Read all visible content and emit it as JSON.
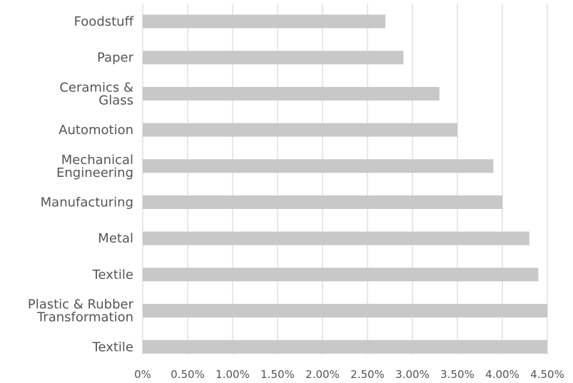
{
  "chart_data": {
    "type": "bar",
    "orientation": "horizontal",
    "title": "",
    "xlabel": "",
    "ylabel": "",
    "categories": [
      "Foodstuff",
      "Paper",
      "Ceramics & Glass",
      "Automotion",
      "Mechanical Engineering",
      "Manufacturing",
      "Metal",
      "Textile",
      "Plastic & Rubber Transformation",
      "Textile"
    ],
    "category_label_lines": [
      [
        "Foodstuff"
      ],
      [
        "Paper"
      ],
      [
        "Ceramics &",
        "Glass"
      ],
      [
        "Automotion"
      ],
      [
        "Mechanical",
        "Engineering"
      ],
      [
        "Manufacturing"
      ],
      [
        "Metal"
      ],
      [
        "Textile"
      ],
      [
        "Plastic & Rubber",
        "Transformation"
      ],
      [
        "Textile"
      ]
    ],
    "values": [
      2.7,
      2.9,
      3.3,
      3.5,
      3.9,
      4.0,
      4.3,
      4.4,
      4.5,
      4.5
    ],
    "value_unit": "%",
    "xlim": [
      0,
      4.5
    ],
    "x_ticks": [
      0,
      0.5,
      1.0,
      1.5,
      2.0,
      2.5,
      3.0,
      3.5,
      4.0,
      4.5
    ],
    "x_tick_labels": [
      "0%",
      "0.50%",
      "1.00%",
      "1.50%",
      "2.00%",
      "2.50%",
      "3.00%",
      "3.50%",
      "4.00%",
      "4.50%"
    ],
    "grid": true,
    "legend": "none",
    "bar_color": "#c8c8c8",
    "grid_color": "#d9d9d9",
    "text_color": "#555555"
  }
}
